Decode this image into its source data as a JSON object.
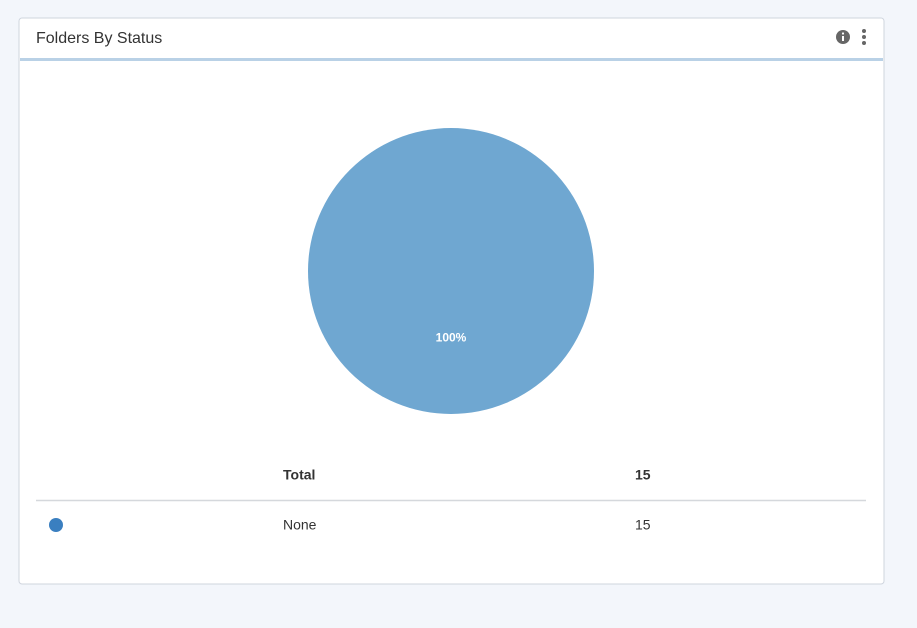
{
  "widget": {
    "title": "Folders By Status"
  },
  "chart_data": {
    "type": "pie",
    "categories": [
      "None"
    ],
    "values": [
      100
    ],
    "value_labels": [
      "100%"
    ],
    "colors": [
      "#6fa7d1"
    ]
  },
  "table": {
    "header": [
      "Total",
      "15"
    ],
    "rows": [
      [
        "None",
        "15"
      ]
    ],
    "marker_color": "#3a7fc0"
  }
}
